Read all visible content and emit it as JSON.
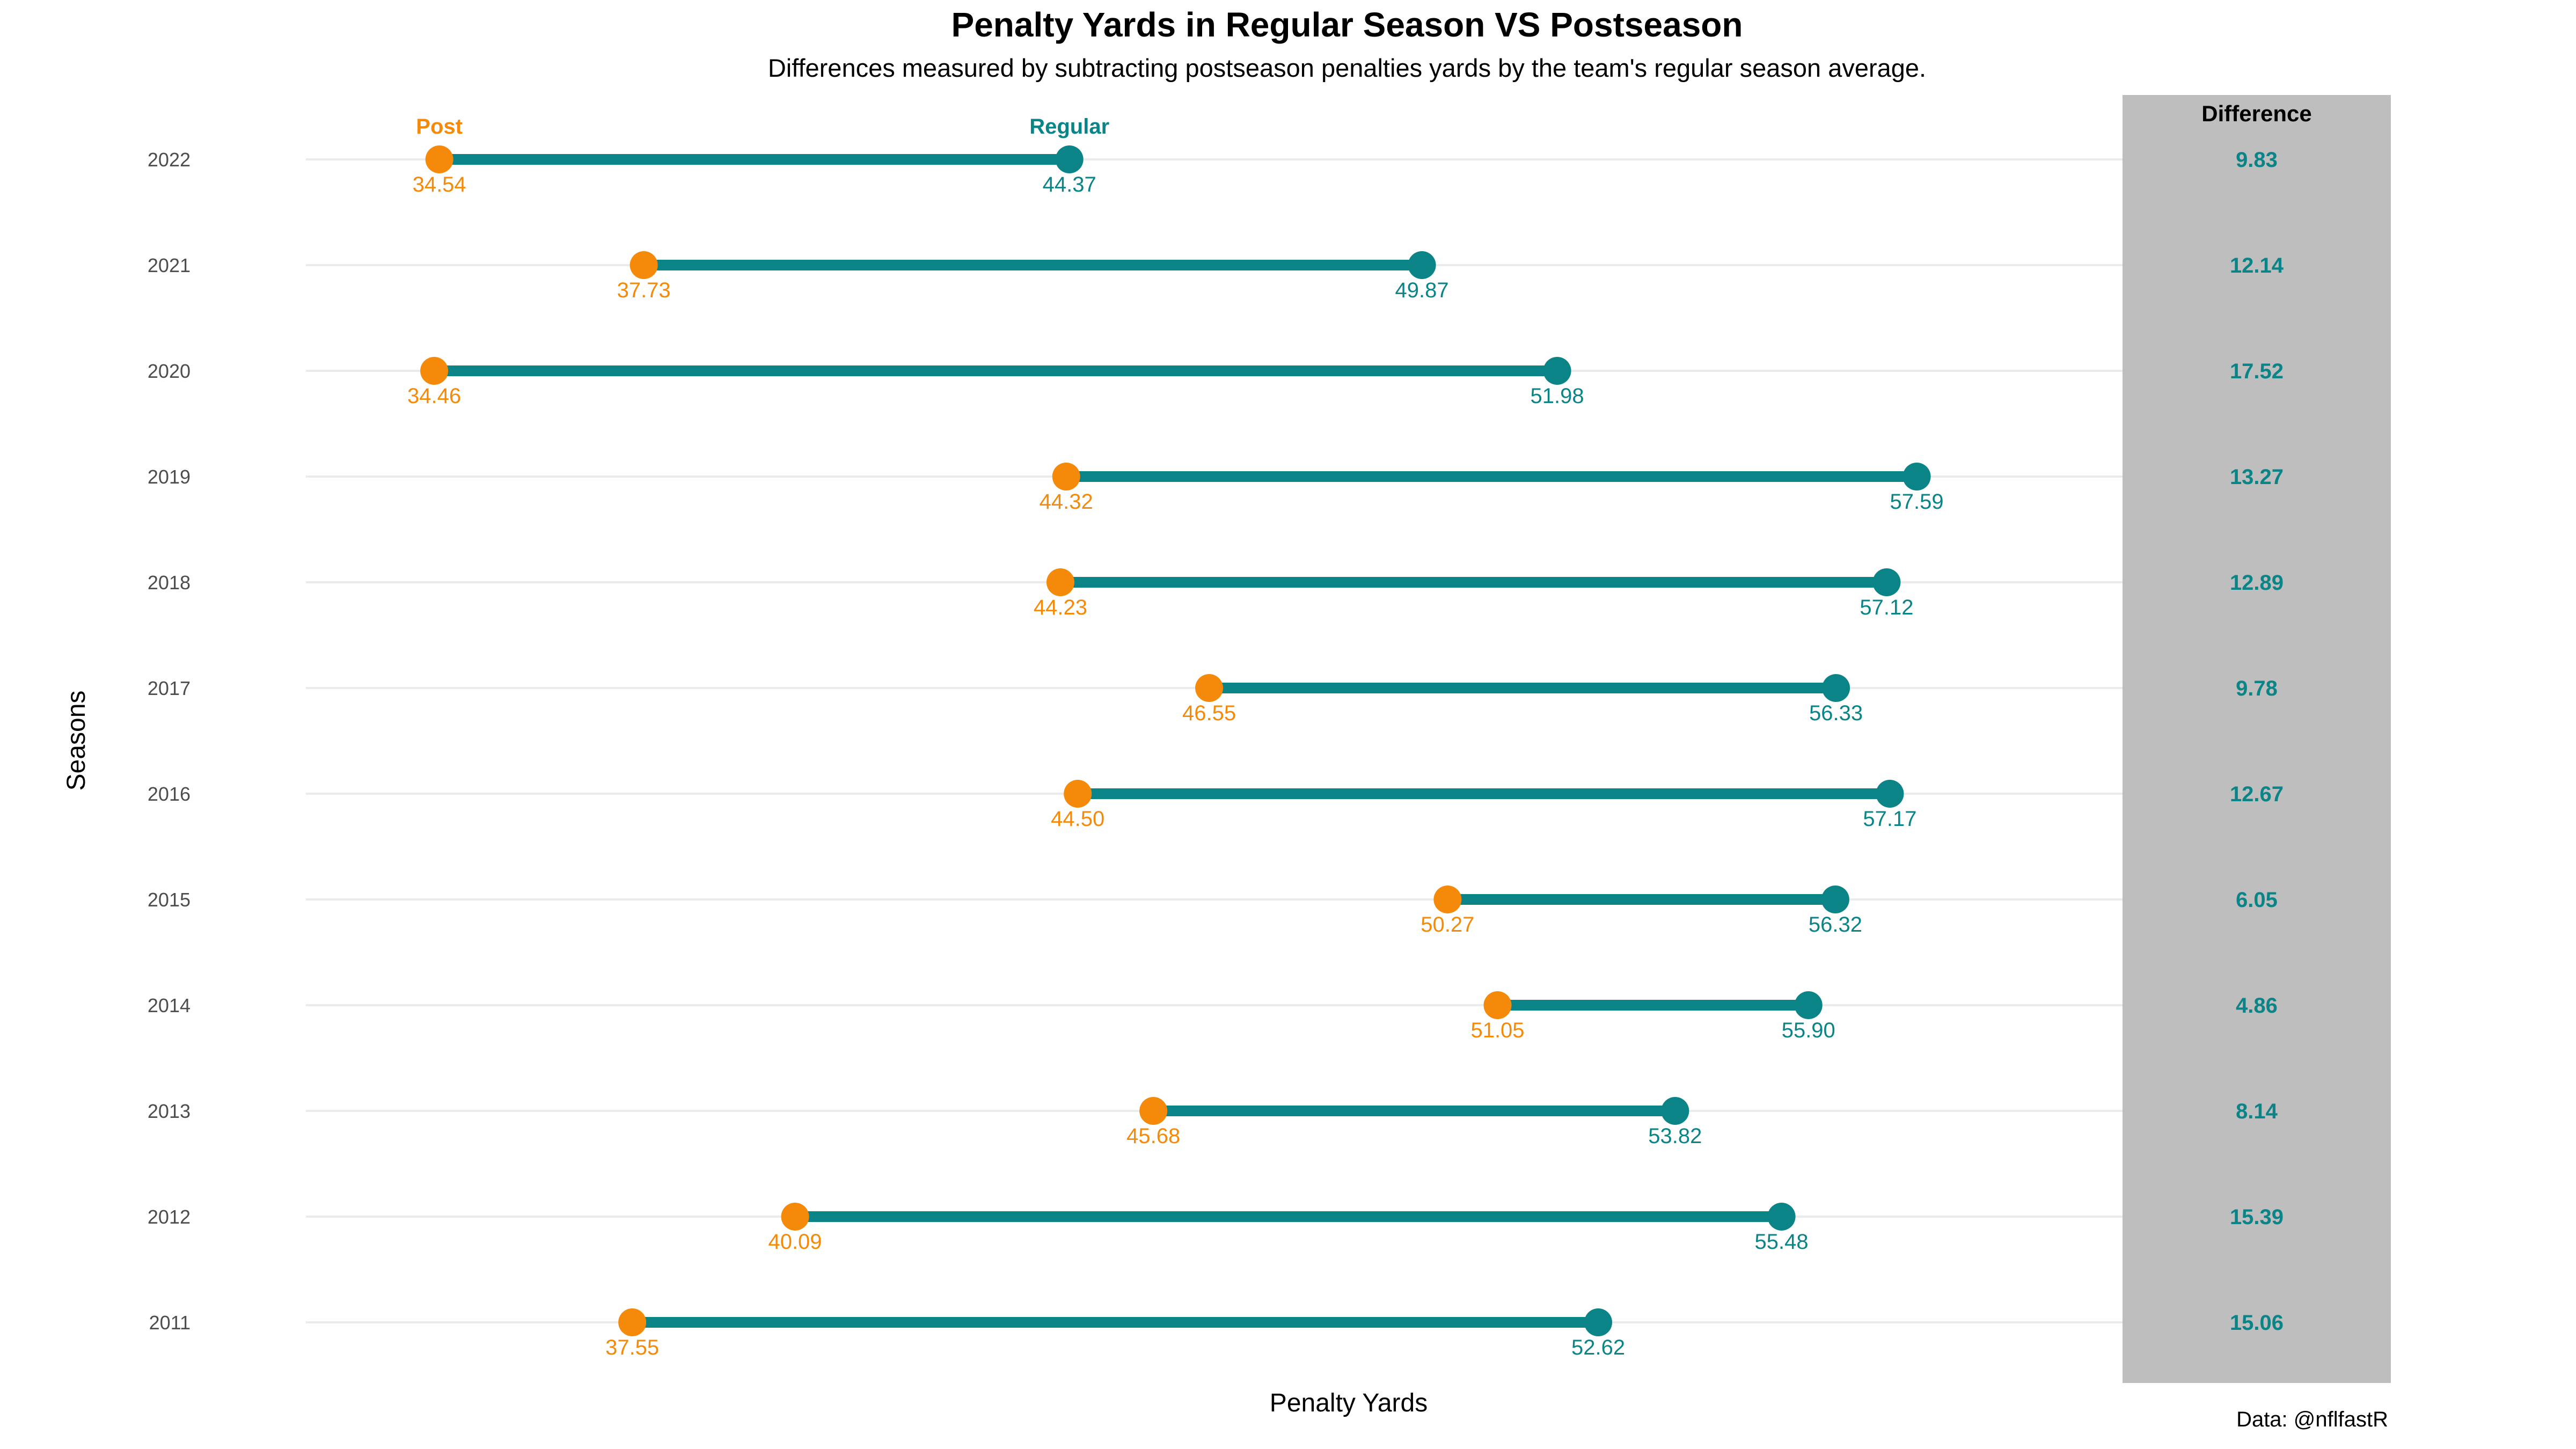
{
  "chart_data": {
    "type": "dumbbell",
    "title": "Penalty Yards in Regular Season VS Postseason",
    "subtitle": "Differences measured by subtracting postseason penalties yards by the team's regular season average.",
    "xlabel": "Penalty Yards",
    "ylabel": "Seasons",
    "caption": "Data: @nflfastR",
    "series_labels": {
      "post": "Post",
      "regular": "Regular"
    },
    "difference_header": "Difference",
    "colors": {
      "post": "#f58a0a",
      "regular": "#0a8487",
      "segment": "#0a8487",
      "panel": "#bebebe",
      "grid": "#ebebeb"
    },
    "xlim": [
      32.5,
      60.8
    ],
    "grid": true,
    "rows": [
      {
        "season": "2022",
        "post": 34.54,
        "regular": 44.37,
        "post_label": "34.54",
        "regular_label": "44.37",
        "difference": "9.83"
      },
      {
        "season": "2021",
        "post": 37.73,
        "regular": 49.87,
        "post_label": "37.73",
        "regular_label": "49.87",
        "difference": "12.14"
      },
      {
        "season": "2020",
        "post": 34.46,
        "regular": 51.98,
        "post_label": "34.46",
        "regular_label": "51.98",
        "difference": "17.52"
      },
      {
        "season": "2019",
        "post": 44.32,
        "regular": 57.59,
        "post_label": "44.32",
        "regular_label": "57.59",
        "difference": "13.27"
      },
      {
        "season": "2018",
        "post": 44.23,
        "regular": 57.12,
        "post_label": "44.23",
        "regular_label": "57.12",
        "difference": "12.89"
      },
      {
        "season": "2017",
        "post": 46.55,
        "regular": 56.33,
        "post_label": "46.55",
        "regular_label": "56.33",
        "difference": "9.78"
      },
      {
        "season": "2016",
        "post": 44.5,
        "regular": 57.17,
        "post_label": "44.50",
        "regular_label": "57.17",
        "difference": "12.67"
      },
      {
        "season": "2015",
        "post": 50.27,
        "regular": 56.32,
        "post_label": "50.27",
        "regular_label": "56.32",
        "difference": "6.05"
      },
      {
        "season": "2014",
        "post": 51.05,
        "regular": 55.9,
        "post_label": "51.05",
        "regular_label": "55.90",
        "difference": "4.86"
      },
      {
        "season": "2013",
        "post": 45.68,
        "regular": 53.82,
        "post_label": "45.68",
        "regular_label": "53.82",
        "difference": "8.14"
      },
      {
        "season": "2012",
        "post": 40.09,
        "regular": 55.48,
        "post_label": "40.09",
        "regular_label": "55.48",
        "difference": "15.39"
      },
      {
        "season": "2011",
        "post": 37.55,
        "regular": 52.62,
        "post_label": "37.55",
        "regular_label": "52.62",
        "difference": "15.06"
      }
    ]
  }
}
